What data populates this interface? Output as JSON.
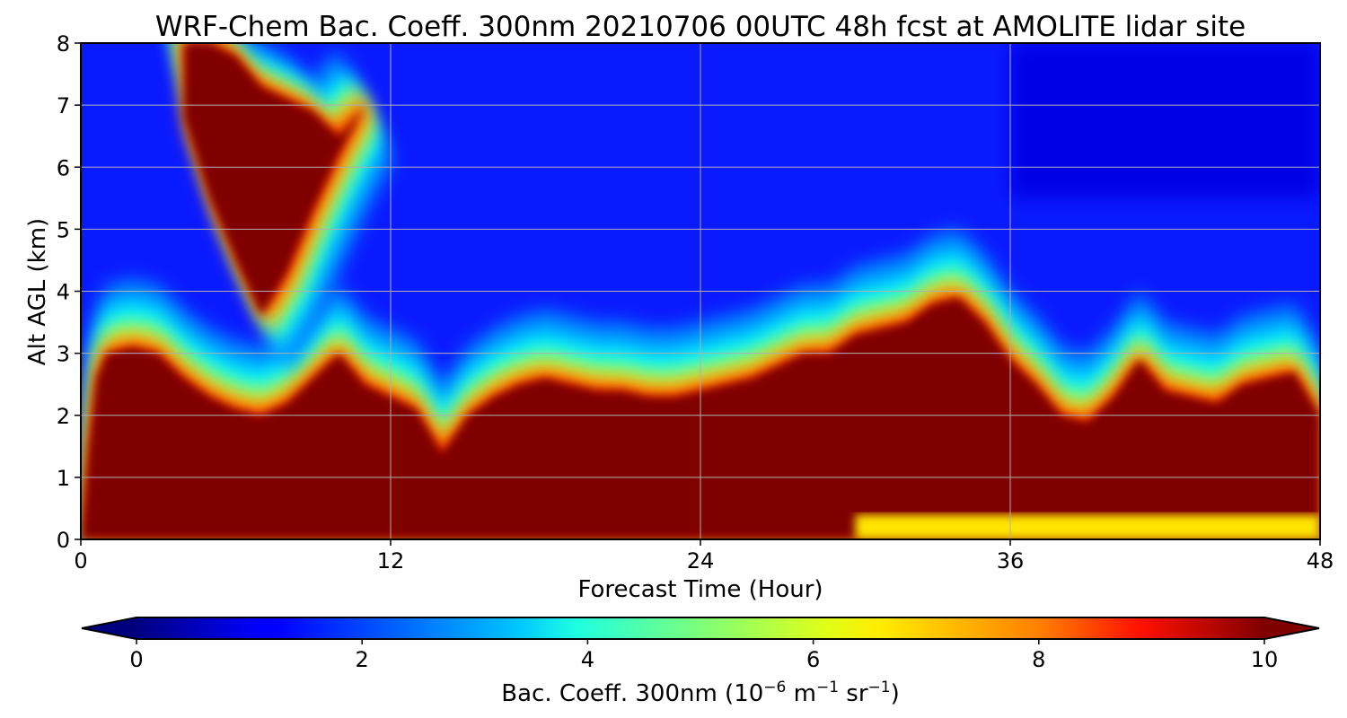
{
  "chart_data": {
    "type": "heatmap",
    "title": "WRF-Chem Bac. Coeff. 300nm  20210706 00UTC 48h fcst at AMOLITE lidar site",
    "xlabel": "Forecast Time (Hour)",
    "ylabel": "Alt AGL (km)",
    "xlim": [
      0,
      48
    ],
    "ylim": [
      0,
      8
    ],
    "x_ticks": [
      "0",
      "12",
      "24",
      "36",
      "48"
    ],
    "y_ticks": [
      "0",
      "1",
      "2",
      "3",
      "4",
      "5",
      "6",
      "7",
      "8"
    ],
    "grid": true,
    "colormap": "jet",
    "colorbar": {
      "label": "Bac. Coeff. 300nm  (10",
      "label_exp1": "−6",
      "label_mid": " m",
      "label_exp2": "−1",
      "label_mid2": " sr",
      "label_exp3": "−1",
      "label_end": ")",
      "range": [
        0,
        10
      ],
      "extend": "both",
      "ticks": [
        "0",
        "2",
        "4",
        "6",
        "8",
        "10"
      ]
    },
    "background_value": 1.2,
    "features": [
      {
        "name": "surface aerosol layer top (value ≥ 10 below)",
        "x": [
          0,
          0.3,
          0.6,
          1,
          2,
          3,
          4,
          5,
          6,
          7,
          8,
          9,
          10,
          11,
          12,
          13,
          14,
          15,
          16,
          17,
          18,
          19,
          20,
          21,
          22,
          23,
          24,
          25,
          26,
          27,
          28,
          29,
          30,
          31,
          32,
          33,
          34,
          35,
          36,
          37,
          38,
          39,
          40,
          41,
          42,
          43,
          44,
          45,
          46,
          47,
          48
        ],
        "y": [
          0,
          1.5,
          2.6,
          3.0,
          3.1,
          3.0,
          2.6,
          2.3,
          2.1,
          2.0,
          2.2,
          2.6,
          3.0,
          2.5,
          2.3,
          2.1,
          1.4,
          2.0,
          2.3,
          2.5,
          2.6,
          2.5,
          2.4,
          2.4,
          2.3,
          2.3,
          2.4,
          2.5,
          2.6,
          2.8,
          3.0,
          3.0,
          3.3,
          3.4,
          3.5,
          3.8,
          3.9,
          3.5,
          2.9,
          2.5,
          2.0,
          1.9,
          2.3,
          2.9,
          2.4,
          2.3,
          2.2,
          2.5,
          2.6,
          2.7,
          2.0
        ]
      },
      {
        "name": "elevated plume (value ≥ 10 inside)",
        "x": [
          4,
          5,
          6,
          7,
          8,
          9,
          10,
          11
        ],
        "y_bottom": [
          6.8,
          5.5,
          4.5,
          3.6,
          4.3,
          5.3,
          6.2,
          7.0
        ],
        "y_top": [
          8.0,
          8.0,
          7.8,
          7.3,
          7.1,
          6.9,
          6.5,
          7.0
        ]
      },
      {
        "name": "near-surface lower-value band",
        "x_range": [
          30,
          48
        ],
        "y_range": [
          0,
          0.4
        ],
        "value": 6.5
      },
      {
        "name": "upper blue patch",
        "x_range": [
          36,
          48
        ],
        "y_range": [
          5.5,
          8
        ],
        "value": 1.0
      }
    ]
  }
}
